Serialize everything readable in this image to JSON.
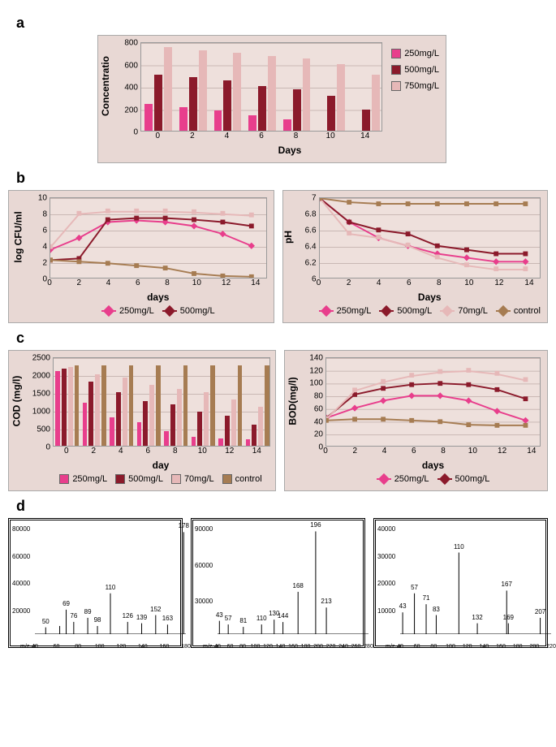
{
  "labels": {
    "a": "a",
    "b": "b",
    "c": "c",
    "d": "d"
  },
  "colors": {
    "c250": "#e83e8c",
    "c500": "#8b1a2b",
    "c750": "#e6b8b8",
    "c70": "#e6b8b8",
    "control": "#a67c52",
    "bg": "#e8d8d4",
    "plot": "#eee0dc",
    "grid": "#c9b8b4"
  },
  "chart_a": {
    "type": "bar",
    "ylabel": "Concentratio",
    "xlabel": "Days",
    "ylim": [
      0,
      800
    ],
    "ytick_step": 200,
    "categories": [
      "0",
      "2",
      "4",
      "6",
      "8",
      "10",
      "14"
    ],
    "series": [
      {
        "name": "250mg/L",
        "color": "#e83e8c",
        "values": [
          240,
          210,
          180,
          140,
          100,
          0,
          0
        ]
      },
      {
        "name": "500mg/L",
        "color": "#8b1a2b",
        "values": [
          500,
          480,
          450,
          400,
          370,
          310,
          190
        ]
      },
      {
        "name": "750mg/L",
        "color": "#e6b8b8",
        "values": [
          750,
          720,
          700,
          670,
          650,
          600,
          500
        ]
      }
    ]
  },
  "chart_b1": {
    "type": "line",
    "ylabel": "log CFU/ml",
    "xlabel": "days",
    "ylim": [
      0,
      10
    ],
    "ytick_step": 2,
    "xlim": [
      0,
      15
    ],
    "xticks": [
      0,
      2,
      4,
      6,
      8,
      10,
      12,
      14
    ],
    "series": [
      {
        "name": "250mg/L",
        "color": "#e83e8c",
        "marker": "diamond",
        "values": [
          [
            0,
            3.5
          ],
          [
            2,
            5.0
          ],
          [
            4,
            7.0
          ],
          [
            6,
            7.2
          ],
          [
            8,
            7.0
          ],
          [
            10,
            6.5
          ],
          [
            12,
            5.5
          ],
          [
            14,
            4.0
          ]
        ]
      },
      {
        "name": "500mg/L",
        "color": "#8b1a2b",
        "marker": "square",
        "values": [
          [
            0,
            2.2
          ],
          [
            2,
            2.4
          ],
          [
            4,
            7.3
          ],
          [
            6,
            7.5
          ],
          [
            8,
            7.5
          ],
          [
            10,
            7.3
          ],
          [
            12,
            7.0
          ],
          [
            14,
            6.5
          ]
        ]
      },
      {
        "name": "70mg/L",
        "color": "#e6b8b8",
        "marker": "triangle",
        "values": [
          [
            0,
            3.8
          ],
          [
            2,
            8.0
          ],
          [
            4,
            8.3
          ],
          [
            6,
            8.3
          ],
          [
            8,
            8.3
          ],
          [
            10,
            8.2
          ],
          [
            12,
            8.0
          ],
          [
            14,
            7.8
          ]
        ]
      },
      {
        "name": "control",
        "color": "#a67c52",
        "marker": "x",
        "values": [
          [
            0,
            2.2
          ],
          [
            2,
            2.0
          ],
          [
            4,
            1.8
          ],
          [
            6,
            1.5
          ],
          [
            8,
            1.2
          ],
          [
            10,
            0.5
          ],
          [
            12,
            0.2
          ],
          [
            14,
            0.1
          ]
        ]
      }
    ]
  },
  "chart_b2": {
    "type": "line",
    "ylabel": "pH",
    "xlabel": "Days",
    "ylim": [
      6,
      7
    ],
    "ytick_step": 0.2,
    "xlim": [
      0,
      15
    ],
    "xticks": [
      0,
      2,
      4,
      6,
      8,
      10,
      12,
      14
    ],
    "series": [
      {
        "name": "250mg/L",
        "color": "#e83e8c",
        "marker": "diamond",
        "values": [
          [
            0,
            7.0
          ],
          [
            2,
            6.7
          ],
          [
            4,
            6.5
          ],
          [
            6,
            6.4
          ],
          [
            8,
            6.3
          ],
          [
            10,
            6.25
          ],
          [
            12,
            6.2
          ],
          [
            14,
            6.2
          ]
        ]
      },
      {
        "name": "500mg/L",
        "color": "#8b1a2b",
        "marker": "square",
        "values": [
          [
            0,
            7.0
          ],
          [
            2,
            6.7
          ],
          [
            4,
            6.6
          ],
          [
            6,
            6.55
          ],
          [
            8,
            6.4
          ],
          [
            10,
            6.35
          ],
          [
            12,
            6.3
          ],
          [
            14,
            6.3
          ]
        ]
      },
      {
        "name": "70mg/L",
        "color": "#e6b8b8",
        "marker": "triangle",
        "values": [
          [
            0,
            7.0
          ],
          [
            2,
            6.55
          ],
          [
            4,
            6.5
          ],
          [
            6,
            6.4
          ],
          [
            8,
            6.25
          ],
          [
            10,
            6.15
          ],
          [
            12,
            6.1
          ],
          [
            14,
            6.1
          ]
        ]
      },
      {
        "name": "control",
        "color": "#a67c52",
        "marker": "x",
        "values": [
          [
            0,
            7.0
          ],
          [
            2,
            6.95
          ],
          [
            4,
            6.93
          ],
          [
            6,
            6.93
          ],
          [
            8,
            6.93
          ],
          [
            10,
            6.93
          ],
          [
            12,
            6.93
          ],
          [
            14,
            6.93
          ]
        ]
      }
    ]
  },
  "chart_c1": {
    "type": "bar",
    "ylabel": "COD (mg/l)",
    "xlabel": "day",
    "ylim": [
      0,
      2500
    ],
    "ytick_step": 500,
    "categories": [
      "0",
      "2",
      "4",
      "6",
      "8",
      "10",
      "12",
      "14"
    ],
    "series": [
      {
        "name": "250mg/L",
        "color": "#e83e8c",
        "values": [
          2100,
          1200,
          800,
          650,
          400,
          250,
          200,
          180
        ]
      },
      {
        "name": "500mg/L",
        "color": "#8b1a2b",
        "values": [
          2150,
          1800,
          1500,
          1250,
          1150,
          950,
          850,
          600
        ]
      },
      {
        "name": "70mg/L",
        "color": "#e6b8b8",
        "values": [
          2200,
          2000,
          1900,
          1700,
          1600,
          1500,
          1300,
          1100
        ]
      },
      {
        "name": "control",
        "color": "#a67c52",
        "values": [
          2250,
          2250,
          2250,
          2250,
          2250,
          2250,
          2250,
          2250
        ]
      }
    ]
  },
  "chart_c2": {
    "type": "line",
    "ylabel": "BOD(mg/l)",
    "xlabel": "days",
    "ylim": [
      0,
      140
    ],
    "ytick_step": 20,
    "xlim": [
      0,
      15
    ],
    "xticks": [
      0,
      2,
      4,
      6,
      8,
      10,
      12,
      14
    ],
    "series": [
      {
        "name": "250mg/L",
        "color": "#e83e8c",
        "marker": "diamond",
        "values": [
          [
            0,
            44
          ],
          [
            2,
            60
          ],
          [
            4,
            72
          ],
          [
            6,
            80
          ],
          [
            8,
            80
          ],
          [
            10,
            72
          ],
          [
            12,
            55
          ],
          [
            14,
            40
          ]
        ]
      },
      {
        "name": "500mg/L",
        "color": "#8b1a2b",
        "marker": "square",
        "values": [
          [
            0,
            44
          ],
          [
            2,
            82
          ],
          [
            4,
            92
          ],
          [
            6,
            98
          ],
          [
            8,
            100
          ],
          [
            10,
            98
          ],
          [
            12,
            90
          ],
          [
            14,
            75
          ]
        ]
      },
      {
        "name": "70mg/L",
        "color": "#e6b8b8",
        "marker": "triangle",
        "values": [
          [
            0,
            42
          ],
          [
            2,
            88
          ],
          [
            4,
            102
          ],
          [
            6,
            112
          ],
          [
            8,
            118
          ],
          [
            10,
            120
          ],
          [
            12,
            115
          ],
          [
            14,
            105
          ]
        ]
      },
      {
        "name": "control",
        "color": "#a67c52",
        "marker": "x",
        "values": [
          [
            0,
            40
          ],
          [
            2,
            42
          ],
          [
            4,
            42
          ],
          [
            6,
            40
          ],
          [
            8,
            38
          ],
          [
            10,
            33
          ],
          [
            12,
            32
          ],
          [
            14,
            32
          ]
        ]
      }
    ]
  },
  "chart_d1": {
    "type": "mass-spectrum",
    "xlabel": "m/z-->",
    "ymax": 80000,
    "yticks": [
      20000,
      40000,
      60000,
      80000
    ],
    "xticks": [
      40,
      60,
      80,
      100,
      120,
      140,
      160,
      180
    ],
    "peaks": [
      {
        "mz": 50,
        "intensity": 5000,
        "label": "50"
      },
      {
        "mz": 63,
        "intensity": 6000,
        "label": ""
      },
      {
        "mz": 69,
        "intensity": 18000,
        "label": "69"
      },
      {
        "mz": 76,
        "intensity": 9000,
        "label": "76"
      },
      {
        "mz": 89,
        "intensity": 12000,
        "label": "89"
      },
      {
        "mz": 98,
        "intensity": 6000,
        "label": "98"
      },
      {
        "mz": 110,
        "intensity": 30000,
        "label": "110"
      },
      {
        "mz": 126,
        "intensity": 9000,
        "label": "126"
      },
      {
        "mz": 139,
        "intensity": 8000,
        "label": "139"
      },
      {
        "mz": 152,
        "intensity": 14000,
        "label": "152"
      },
      {
        "mz": 163,
        "intensity": 7000,
        "label": "163"
      },
      {
        "mz": 178,
        "intensity": 75000,
        "label": "178"
      }
    ]
  },
  "chart_d2": {
    "type": "mass-spectrum",
    "xlabel": "m/z-->",
    "ymax": 90000,
    "yticks": [
      30000,
      60000,
      90000
    ],
    "xticks": [
      40,
      60,
      80,
      100,
      120,
      140,
      160,
      180,
      200,
      220,
      240,
      260,
      280
    ],
    "peaks": [
      {
        "mz": 43,
        "intensity": 11000,
        "label": "43"
      },
      {
        "mz": 57,
        "intensity": 8000,
        "label": "57"
      },
      {
        "mz": 81,
        "intensity": 6000,
        "label": "81"
      },
      {
        "mz": 110,
        "intensity": 8000,
        "label": "110"
      },
      {
        "mz": 130,
        "intensity": 12000,
        "label": "130"
      },
      {
        "mz": 144,
        "intensity": 10000,
        "label": "144"
      },
      {
        "mz": 168,
        "intensity": 35000,
        "label": "168"
      },
      {
        "mz": 196,
        "intensity": 85000,
        "label": "196"
      },
      {
        "mz": 213,
        "intensity": 22000,
        "label": "213"
      }
    ]
  },
  "chart_d3": {
    "type": "mass-spectrum",
    "xlabel": "m/z-->",
    "ymax": 40000,
    "yticks": [
      10000,
      20000,
      30000,
      40000
    ],
    "xticks": [
      40,
      60,
      80,
      100,
      120,
      140,
      160,
      180,
      200,
      220
    ],
    "peaks": [
      {
        "mz": 43,
        "intensity": 8000,
        "label": "43"
      },
      {
        "mz": 57,
        "intensity": 15000,
        "label": "57"
      },
      {
        "mz": 71,
        "intensity": 11000,
        "label": "71"
      },
      {
        "mz": 83,
        "intensity": 7000,
        "label": "83"
      },
      {
        "mz": 110,
        "intensity": 30000,
        "label": "110"
      },
      {
        "mz": 132,
        "intensity": 4000,
        "label": "132"
      },
      {
        "mz": 167,
        "intensity": 16000,
        "label": "167"
      },
      {
        "mz": 169,
        "intensity": 4000,
        "label": "169"
      },
      {
        "mz": 207,
        "intensity": 6000,
        "label": "207"
      }
    ]
  }
}
